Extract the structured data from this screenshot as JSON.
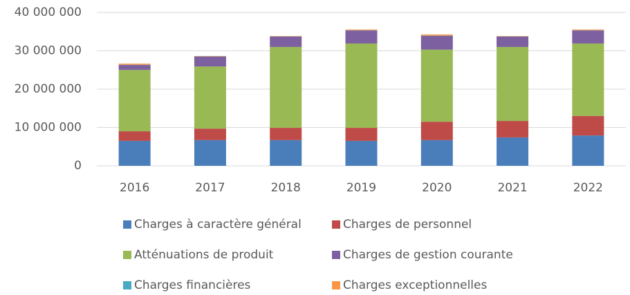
{
  "chart_data": {
    "type": "stacked_bar",
    "categories": [
      "2016",
      "2017",
      "2018",
      "2019",
      "2020",
      "2021",
      "2022"
    ],
    "series": [
      {
        "name": "Charges à caractère général",
        "color": "#4a7ebb",
        "values": [
          6500000,
          6700000,
          6700000,
          6500000,
          6700000,
          7400000,
          7900000
        ]
      },
      {
        "name": "Charges de personnel",
        "color": "#be4b48",
        "values": [
          2500000,
          3000000,
          3200000,
          3400000,
          4800000,
          4300000,
          5100000
        ]
      },
      {
        "name": "Atténuations de produit",
        "color": "#98b954",
        "values": [
          16000000,
          16200000,
          21100000,
          22000000,
          18800000,
          19300000,
          18900000
        ]
      },
      {
        "name": "Charges de gestion courante",
        "color": "#7d60a0",
        "values": [
          1300000,
          2600000,
          2700000,
          3400000,
          3600000,
          2700000,
          3400000
        ]
      },
      {
        "name": "Charges financières",
        "color": "#46aac5",
        "values": [
          50000,
          50000,
          50000,
          50000,
          50000,
          50000,
          50000
        ]
      },
      {
        "name": "Charges exceptionnelles",
        "color": "#f79646",
        "values": [
          300000,
          100000,
          100000,
          200000,
          300000,
          100000,
          200000
        ]
      }
    ],
    "ylim": [
      0,
      40000000
    ],
    "yticks": [
      0,
      {
        "value": 10000000,
        "label": "10 000 000"
      },
      {
        "value": 20000000,
        "label": "20 000 000"
      },
      {
        "value": 30000000,
        "label": "30 000 000"
      },
      {
        "value": 40000000,
        "label": "40 000 000"
      }
    ],
    "grid": true,
    "legend": "bottom"
  }
}
